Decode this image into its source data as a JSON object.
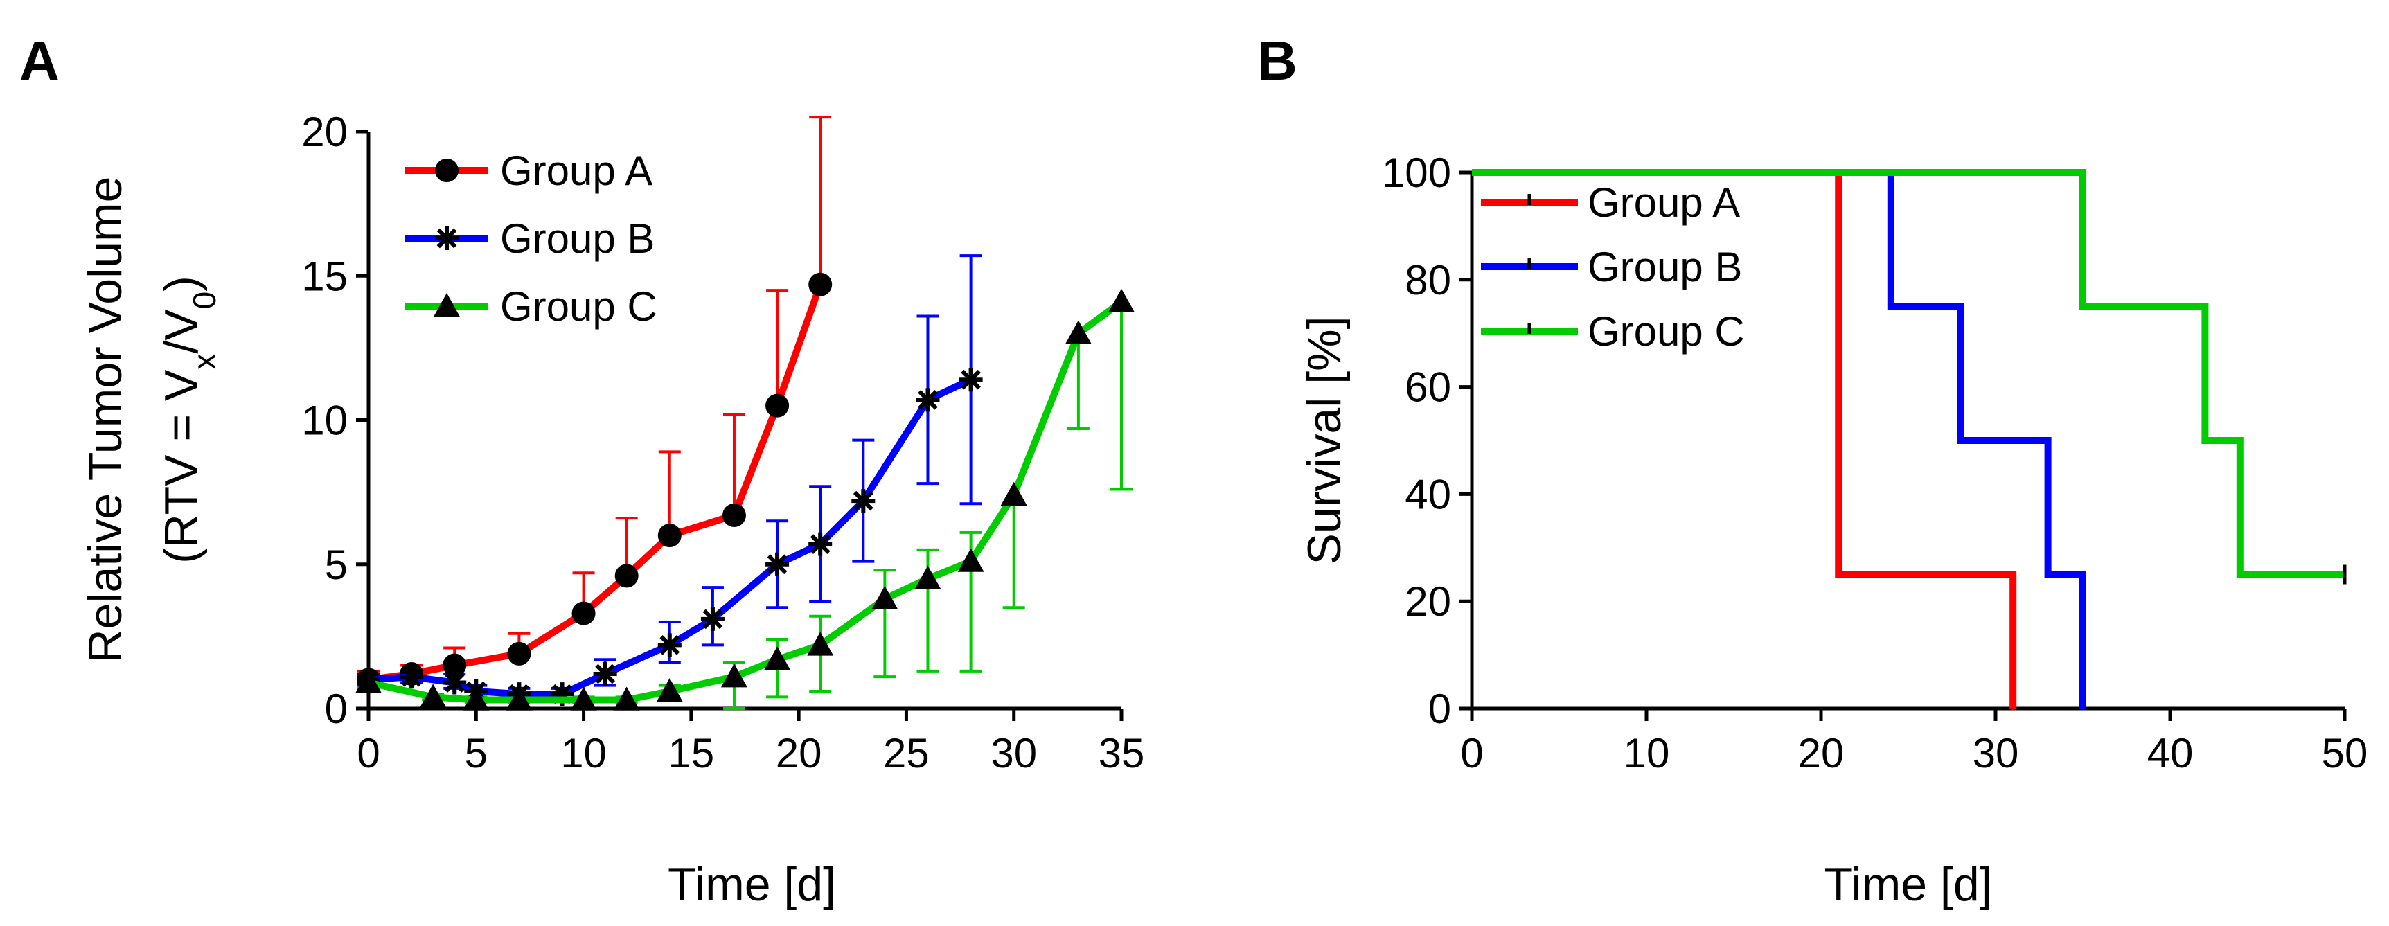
{
  "chart_data": [
    {
      "panel": "A",
      "type": "line",
      "title": "",
      "xlabel": "Time [d]",
      "ylabel_line1": "Relative Tumor Volume",
      "ylabel_line2": {
        "prefix": "(RTV = V",
        "sub1": "x",
        "mid": "/V",
        "sub2": "0",
        "suffix": ")"
      },
      "xlim": [
        0,
        35
      ],
      "ylim": [
        0,
        20
      ],
      "xticks": [
        0,
        5,
        10,
        15,
        20,
        25,
        30,
        35
      ],
      "yticks": [
        0,
        5,
        10,
        15,
        20
      ],
      "grid": false,
      "legend_position": "top-left",
      "series": [
        {
          "name": "Group A",
          "color": "#ff0000",
          "marker": "circle",
          "x": [
            0,
            2,
            4,
            7,
            10,
            12,
            14,
            17,
            19,
            21
          ],
          "y": [
            1.0,
            1.2,
            1.5,
            1.9,
            3.3,
            4.6,
            6.0,
            6.7,
            10.5,
            14.7
          ],
          "err_up": [
            0.3,
            0.3,
            0.6,
            0.7,
            1.4,
            2.0,
            2.9,
            3.5,
            4.0,
            5.8
          ]
        },
        {
          "name": "Group B",
          "color": "#0000ff",
          "marker": "asterisk",
          "x": [
            0,
            2,
            4,
            5,
            7,
            9,
            11,
            14,
            16,
            19,
            21,
            23,
            26,
            28
          ],
          "y": [
            1.0,
            1.1,
            0.9,
            0.6,
            0.5,
            0.5,
            1.2,
            2.2,
            3.1,
            5.0,
            5.7,
            7.2,
            10.7,
            11.4
          ],
          "err_up": [
            0.2,
            0.2,
            0.3,
            0.2,
            0.2,
            0.2,
            0.5,
            0.8,
            1.1,
            1.5,
            2.0,
            2.1,
            2.9,
            4.3
          ],
          "err_down": [
            0.2,
            0.2,
            0.2,
            0.2,
            0.2,
            0.2,
            0.4,
            0.6,
            0.9,
            1.5,
            2.0,
            2.1,
            2.9,
            4.3
          ]
        },
        {
          "name": "Group C",
          "color": "#00cc00",
          "marker": "triangle",
          "x": [
            0,
            3,
            5,
            7,
            10,
            12,
            14,
            17,
            19,
            21,
            24,
            26,
            28,
            30,
            33,
            35
          ],
          "y": [
            0.9,
            0.4,
            0.3,
            0.3,
            0.3,
            0.3,
            0.6,
            1.1,
            1.7,
            2.2,
            3.8,
            4.5,
            5.1,
            7.4,
            13.0,
            14.1
          ],
          "err_up": [
            0.2,
            0.1,
            0.1,
            0.1,
            0.1,
            0.1,
            0.2,
            0.5,
            0.7,
            1.0,
            1.0,
            1.0,
            1.0,
            0,
            0,
            0
          ],
          "err_down": [
            0.2,
            0.1,
            0.1,
            0.1,
            0.1,
            0.1,
            0.3,
            1.1,
            1.3,
            1.6,
            2.7,
            3.2,
            3.8,
            3.9,
            3.3,
            6.5
          ]
        }
      ]
    },
    {
      "panel": "B",
      "type": "line",
      "subtype": "step",
      "title": "",
      "xlabel": "Time [d]",
      "ylabel": "Survival [%]",
      "xlim": [
        0,
        50
      ],
      "ylim": [
        0,
        100
      ],
      "xticks": [
        0,
        10,
        20,
        30,
        40,
        50
      ],
      "yticks": [
        0,
        20,
        40,
        60,
        80,
        100
      ],
      "grid": false,
      "legend_position": "top-left",
      "series": [
        {
          "name": "Group A",
          "color": "#ff0000",
          "x": [
            0,
            21,
            31
          ],
          "y": [
            100,
            25,
            0
          ]
        },
        {
          "name": "Group B",
          "color": "#0000ff",
          "x": [
            0,
            24,
            28,
            33,
            35
          ],
          "y": [
            100,
            75,
            50,
            25,
            0
          ]
        },
        {
          "name": "Group C",
          "color": "#00cc00",
          "x": [
            0,
            35,
            42,
            44,
            50
          ],
          "y": [
            100,
            75,
            50,
            25,
            25
          ]
        }
      ]
    }
  ]
}
